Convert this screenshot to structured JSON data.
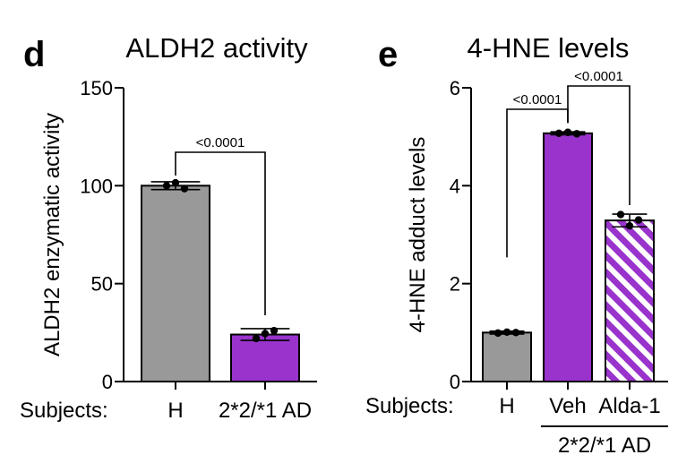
{
  "chart_data": [
    {
      "type": "bar",
      "panel": "d",
      "title": "ALDH2 activity",
      "ylabel": "ALDH2 enzymatic activity",
      "xlabel": "Subjects:",
      "ylim": [
        0,
        150
      ],
      "yticks": [
        0,
        50,
        100,
        150
      ],
      "categories": [
        "H",
        "2*2/*1 AD"
      ],
      "values": [
        100,
        24
      ],
      "errors": [
        2,
        3
      ],
      "points": [
        [
          100,
          101.5,
          98.5
        ],
        [
          22,
          24.5,
          26
        ]
      ],
      "colors": [
        "#999999",
        "#9933CC"
      ],
      "hatched": [
        false,
        false
      ],
      "comparisons": [
        {
          "from": 0,
          "to": 1,
          "label": "<0.0001"
        }
      ]
    },
    {
      "type": "bar",
      "panel": "e",
      "title": "4-HNE levels",
      "ylabel": "4-HNE adduct levels",
      "xlabel": "Subjects:",
      "ylim": [
        0,
        6
      ],
      "yticks": [
        0,
        2,
        4,
        6
      ],
      "categories": [
        "H",
        "Veh",
        "Alda-1"
      ],
      "values": [
        1.0,
        5.07,
        3.29
      ],
      "errors": [
        0.03,
        0.03,
        0.13
      ],
      "points": [
        [
          0.99,
          1.01,
          1.0
        ],
        [
          5.07,
          5.09,
          5.06
        ],
        [
          3.41,
          3.18,
          3.3
        ]
      ],
      "colors": [
        "#999999",
        "#9933CC",
        "#9933CC"
      ],
      "hatched": [
        false,
        false,
        true
      ],
      "group_label": "2*2/*1 AD",
      "group_span": [
        1,
        2
      ],
      "comparisons": [
        {
          "from": 0,
          "to": 1,
          "label": "<0.0001"
        },
        {
          "from": 1,
          "to": 2,
          "label": "<0.0001"
        }
      ]
    }
  ]
}
